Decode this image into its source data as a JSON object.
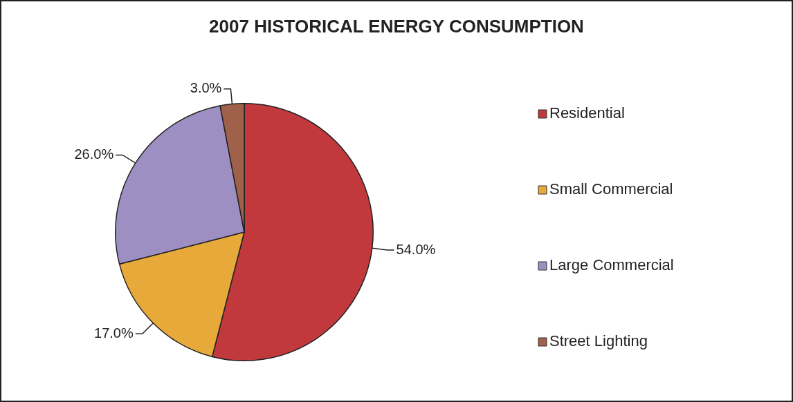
{
  "chart_data": {
    "type": "pie",
    "title": "2007 HISTORICAL ENERGY CONSUMPTION",
    "categories": [
      "Residential",
      "Small Commercial",
      "Large Commercial",
      "Street Lighting"
    ],
    "values": [
      54,
      17,
      26,
      3
    ],
    "colors": [
      "#c1393c",
      "#e6a93a",
      "#9d8fc2",
      "#a0614a"
    ],
    "value_labels": [
      "54.0%",
      "17.0%",
      "26.0%",
      "3.0%"
    ],
    "legend": "right"
  }
}
